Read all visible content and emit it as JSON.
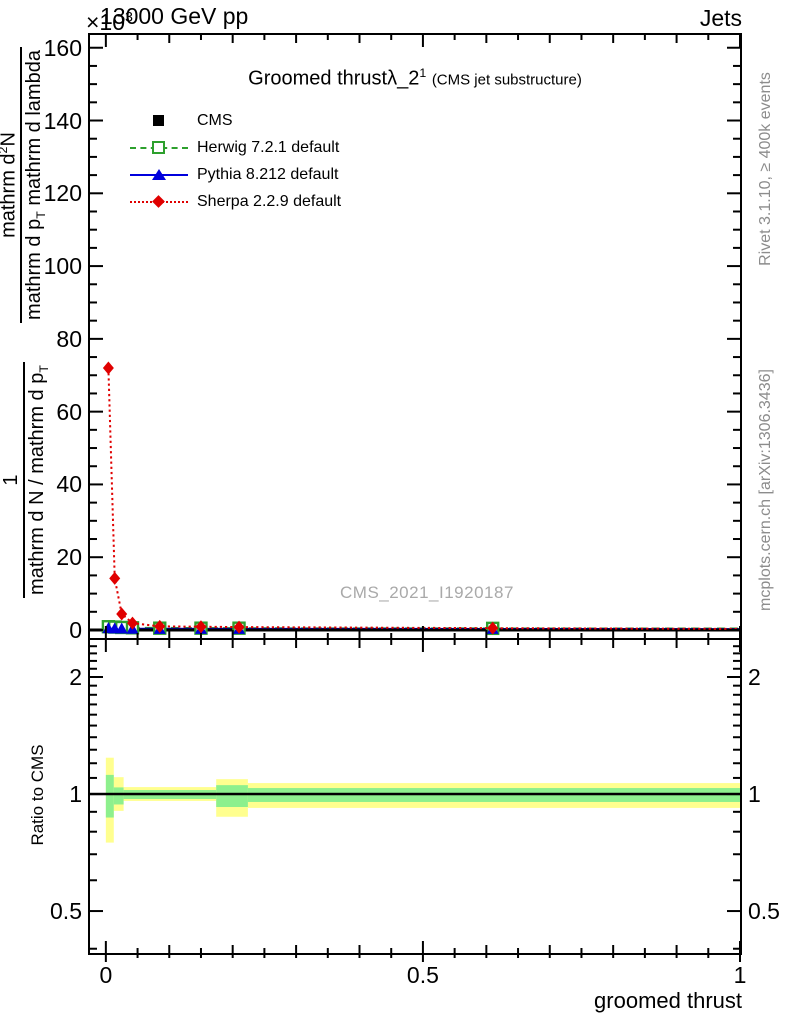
{
  "header": {
    "beam": "13000 GeV pp",
    "multiplier_base": "×10",
    "multiplier_exp": "3",
    "right": "Jets"
  },
  "title": {
    "main": "Groomed thrustλ_2",
    "sup": "1",
    "paren": "(CMS jet substructure)"
  },
  "legend": {
    "items": [
      {
        "label": "CMS",
        "color": "#000000",
        "marker": "filled-square",
        "line": "none"
      },
      {
        "label": "Herwig 7.2.1 default",
        "color": "#2da02d",
        "marker": "open-square",
        "line": "dashed"
      },
      {
        "label": "Pythia 8.212 default",
        "color": "#0000dd",
        "marker": "filled-triangle",
        "line": "solid"
      },
      {
        "label": "Sherpa 2.2.9 default",
        "color": "#e00000",
        "marker": "filled-diamond",
        "line": "dotted"
      }
    ]
  },
  "ylabel_main": {
    "frac1_num_pre": "mathrm d",
    "frac1_num_sup": "2",
    "frac1_num_post": "N",
    "frac1_den_pre": "mathrm d p",
    "frac1_den_sub": "T",
    "frac1_den_post": " mathrm d lambda",
    "frac2_num": "1",
    "frac2_den_pre": "mathrm d N / mathrm d p",
    "frac2_den_sub": "T"
  },
  "side_notes": {
    "top": "Rivet 3.1.10, ≥ 400k events",
    "bottom": "mcplots.cern.ch [arXiv:1306.3436]"
  },
  "watermark": "CMS_2021_I1920187",
  "ratio_axis_label": "Ratio to CMS",
  "xlabel": "groomed thrust",
  "colors": {
    "band_yellow": "#ffff8f",
    "band_green": "#8df08d",
    "gray_text": "#8c8c8c"
  },
  "chart_data": {
    "type": "line",
    "title": "Groomed thrust λ_2^1 (CMS jet substructure)",
    "xlabel": "groomed thrust",
    "ylabel": "1/(dN/dp_T) d^2N/(dp_T dlambda), values ×10^3",
    "legend_position": "top-left",
    "grid": false,
    "main": {
      "xlim": [
        -0.025,
        1.0
      ],
      "ylim": [
        -2.2,
        163.5
      ],
      "x_axis_multiplier": "1e3",
      "yticks_major": [
        0,
        20,
        40,
        60,
        80,
        100,
        120,
        140,
        160
      ],
      "yticks_minor_step": 5,
      "xticks": [
        {
          "v": 0,
          "label": "0"
        },
        {
          "v": 0.5,
          "label": "0.5"
        },
        {
          "v": 1,
          "label": "1"
        }
      ],
      "xticks_minor_step": 0.05,
      "series": [
        {
          "name": "CMS",
          "color": "#000000",
          "marker": "filled-square",
          "line": "none",
          "mx": [
            0.004,
            0.014,
            0.025,
            0.042,
            0.085,
            0.15,
            0.21,
            0.61
          ],
          "my": [
            0.6,
            0.6,
            0.5,
            0.5,
            0.4,
            0.4,
            0.4,
            0.4
          ],
          "lx": [],
          "ly": []
        },
        {
          "name": "Herwig 7.2.1 default",
          "color": "#2da02d",
          "marker": "open-square",
          "line": "dashed",
          "mx": [
            0.004,
            0.014,
            0.025,
            0.042,
            0.085,
            0.15,
            0.21,
            0.61
          ],
          "my": [
            0.9,
            0.8,
            0.7,
            0.6,
            0.5,
            0.5,
            0.5,
            0.45
          ],
          "lx": [
            0.0,
            0.05,
            0.3,
            1.0
          ],
          "ly": [
            0.9,
            0.6,
            0.45,
            0.4
          ]
        },
        {
          "name": "Pythia 8.212 default",
          "color": "#0000dd",
          "marker": "filled-triangle",
          "line": "solid",
          "mx": [
            0.004,
            0.014,
            0.025,
            0.042,
            0.085,
            0.15,
            0.21,
            0.61
          ],
          "my": [
            0.5,
            0.45,
            0.4,
            0.35,
            0.3,
            0.3,
            0.3,
            0.3
          ],
          "lx": [
            0.0,
            0.05,
            0.3,
            1.0
          ],
          "ly": [
            0.5,
            0.35,
            0.3,
            0.25
          ]
        },
        {
          "name": "Sherpa 2.2.9 default",
          "color": "#e00000",
          "marker": "filled-diamond",
          "line": "dotted",
          "mx": [
            0.004,
            0.014,
            0.025,
            0.042,
            0.085,
            0.15,
            0.21,
            0.61
          ],
          "my": [
            72,
            14.2,
            4.4,
            1.9,
            1.0,
            0.9,
            0.8,
            0.5
          ],
          "lx": [
            0.004,
            0.014,
            0.025,
            0.042,
            0.085,
            0.15,
            0.21,
            0.61,
            1.0
          ],
          "ly": [
            72,
            14.2,
            4.4,
            1.9,
            1.0,
            0.9,
            0.8,
            0.5,
            0.3
          ]
        }
      ]
    },
    "ratio": {
      "scale": "log",
      "ylim": [
        0.39,
        2.49
      ],
      "yticks_labeled": [
        {
          "v": 2,
          "label": "2"
        },
        {
          "v": 1,
          "label": "1"
        },
        {
          "v": 0.5,
          "label": "0.5"
        }
      ],
      "yticks_minor": [
        0.4,
        0.5,
        0.6,
        0.7,
        0.8,
        0.9,
        1.0,
        1.1,
        1.2,
        1.3,
        1.4,
        1.5,
        1.6,
        1.7,
        1.8,
        1.9,
        2.0,
        2.1,
        2.2,
        2.3,
        2.4
      ],
      "reference_line": 1.0,
      "bands": [
        {
          "x0": 0.0,
          "x1": 0.0125,
          "yellow": [
            0.75,
            1.24
          ],
          "green": [
            0.87,
            1.12
          ]
        },
        {
          "x0": 0.0125,
          "x1": 0.028,
          "yellow": [
            0.905,
            1.105
          ],
          "green": [
            0.94,
            1.04
          ]
        },
        {
          "x0": 0.028,
          "x1": 0.174,
          "yellow": [
            0.96,
            1.042
          ],
          "green": [
            0.971,
            1.024
          ]
        },
        {
          "x0": 0.174,
          "x1": 0.224,
          "yellow": [
            0.874,
            1.092
          ],
          "green": [
            0.926,
            1.054
          ]
        },
        {
          "x0": 0.224,
          "x1": 1.0,
          "yellow": [
            0.921,
            1.067
          ],
          "green": [
            0.954,
            1.036
          ]
        }
      ]
    }
  }
}
